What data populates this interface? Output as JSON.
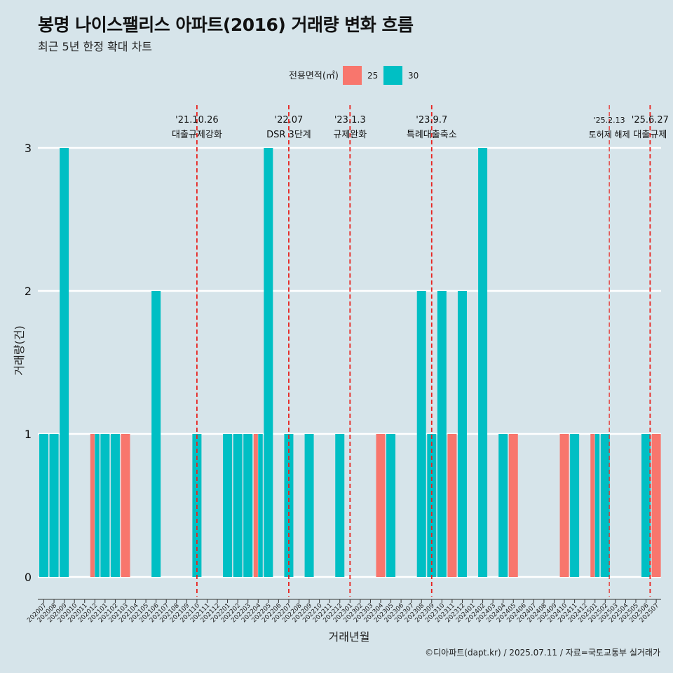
{
  "title": "봉명 나이스팰리스 아파트(2016) 거래량 변화 흐름",
  "subtitle": "최근 5년 한정 확대 차트",
  "caption": "©디아파트(dapt.kr) / 2025.07.11 / 자료=국토교통부 실거래가",
  "colors": {
    "background": "#d6e4ea",
    "series_25": "#f8766d",
    "series_30": "#00bfc4",
    "event_line": "#e8231f",
    "grid": "#ffffff"
  },
  "chart_data": {
    "type": "bar",
    "title": "봉명 나이스팰리스 아파트(2016) 거래량 변화 흐름",
    "subtitle": "최근 5년 한정 확대 차트",
    "xlabel": "거래년월",
    "ylabel": "거래량(건)",
    "ylim": [
      0,
      3
    ],
    "yticks": [
      0,
      1,
      2,
      3
    ],
    "legend_title": "전용면적(㎡)",
    "legend_position": "top",
    "grid": true,
    "categories": [
      "202007",
      "202008",
      "202009",
      "202010",
      "202011",
      "202012",
      "202101",
      "202102",
      "202103",
      "202104",
      "202105",
      "202106",
      "202107",
      "202108",
      "202109",
      "202110",
      "202111",
      "202112",
      "202201",
      "202202",
      "202203",
      "202204",
      "202205",
      "202206",
      "202207",
      "202208",
      "202209",
      "202210",
      "202211",
      "202212",
      "202301",
      "202302",
      "202303",
      "202304",
      "202305",
      "202306",
      "202307",
      "202308",
      "202309",
      "202310",
      "202311",
      "202312",
      "202401",
      "202402",
      "202403",
      "202404",
      "202405",
      "202406",
      "202407",
      "202408",
      "202409",
      "202410",
      "202411",
      "202412",
      "202501",
      "202502",
      "202503",
      "202504",
      "202505",
      "202506",
      "202507"
    ],
    "series": [
      {
        "name": "25",
        "color": "#f8766d",
        "values": [
          0,
          0,
          0,
          0,
          0,
          1,
          0,
          0,
          1,
          0,
          0,
          0,
          0,
          0,
          0,
          0,
          0,
          0,
          0,
          0,
          0,
          1,
          0,
          0,
          0,
          0,
          0,
          0,
          0,
          0,
          0,
          0,
          0,
          1,
          0,
          0,
          0,
          0,
          0,
          0,
          1,
          0,
          0,
          0,
          0,
          0,
          1,
          0,
          0,
          0,
          0,
          1,
          0,
          0,
          1,
          0,
          0,
          0,
          0,
          0,
          1
        ]
      },
      {
        "name": "30",
        "color": "#00bfc4",
        "values": [
          1,
          1,
          3,
          0,
          0,
          1,
          1,
          1,
          0,
          0,
          0,
          2,
          0,
          0,
          0,
          1,
          0,
          0,
          1,
          1,
          1,
          1,
          3,
          0,
          1,
          0,
          1,
          0,
          0,
          1,
          0,
          0,
          0,
          0,
          1,
          0,
          0,
          2,
          1,
          2,
          0,
          2,
          0,
          3,
          0,
          1,
          0,
          0,
          0,
          0,
          0,
          0,
          1,
          0,
          1,
          1,
          0,
          0,
          0,
          1,
          0
        ]
      }
    ],
    "events": [
      {
        "date": "'21.10.26",
        "label": "대출규제강화",
        "position": 15.0,
        "style": "bold"
      },
      {
        "date": "'22.07",
        "label": "DSR 3단계",
        "position": 24.0,
        "style": "bold"
      },
      {
        "date": "'23.1.3",
        "label": "규제완화",
        "position": 30.0,
        "style": "bold"
      },
      {
        "date": "'23.9.7",
        "label": "특례대출축소",
        "position": 38.0,
        "style": "bold"
      },
      {
        "date": "'25.2.13",
        "label": "토허제 해제",
        "position": 55.4,
        "style": "thin"
      },
      {
        "date": "'25.6.27",
        "label": "대출규제",
        "position": 59.4,
        "style": "bold"
      }
    ]
  }
}
